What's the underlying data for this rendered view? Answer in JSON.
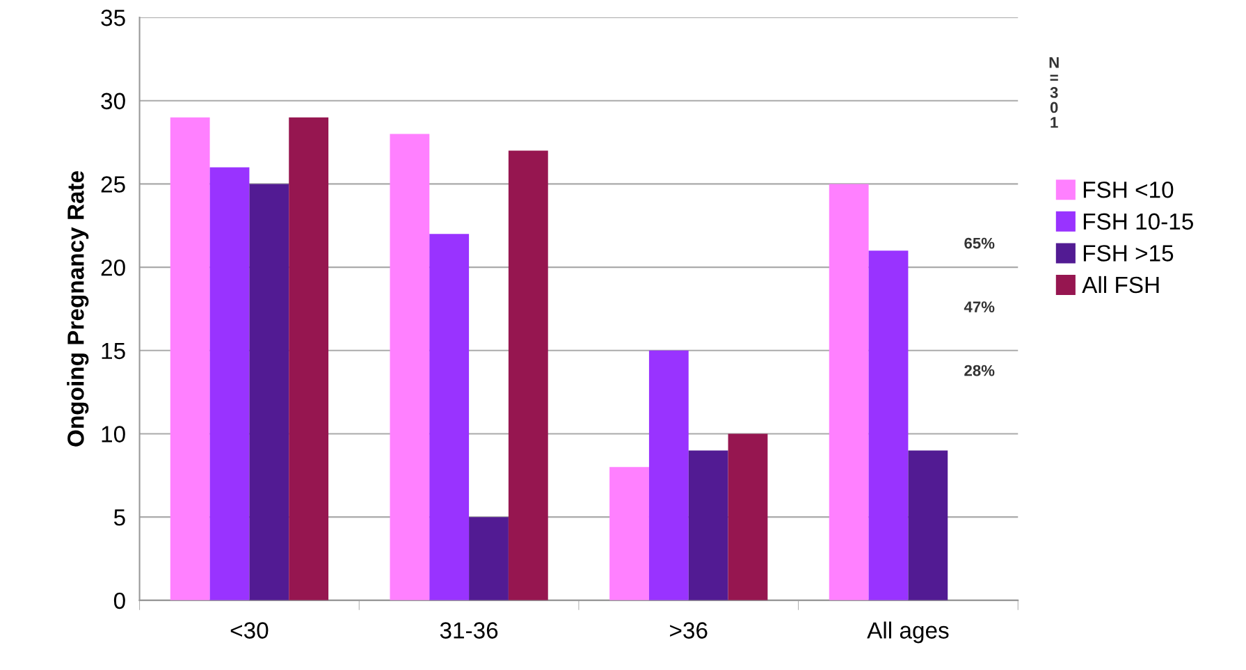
{
  "chart_data": {
    "type": "bar",
    "ylabel": "Ongoing Pregnancy Rate",
    "categories": [
      "<30",
      "31-36",
      ">36",
      "All ages"
    ],
    "series": [
      {
        "name": "FSH <10",
        "color": "#ff80ff",
        "values": [
          29,
          28,
          8,
          25
        ]
      },
      {
        "name": "FSH 10-15",
        "color": "#9933ff",
        "values": [
          26,
          22,
          15,
          21
        ]
      },
      {
        "name": "FSH >15",
        "color": "#521b93",
        "values": [
          25,
          5,
          9,
          9
        ]
      },
      {
        "name": "All FSH",
        "color": "#961650",
        "values": [
          29,
          27,
          10,
          null
        ]
      }
    ],
    "ylim": [
      0,
      35
    ],
    "yticks": [
      0,
      5,
      10,
      15,
      20,
      25,
      30,
      35
    ],
    "grid": "y",
    "legend": "right",
    "annotations": [
      "N\n=\n3\n0\n1",
      "65%",
      "47%",
      "28%"
    ]
  }
}
